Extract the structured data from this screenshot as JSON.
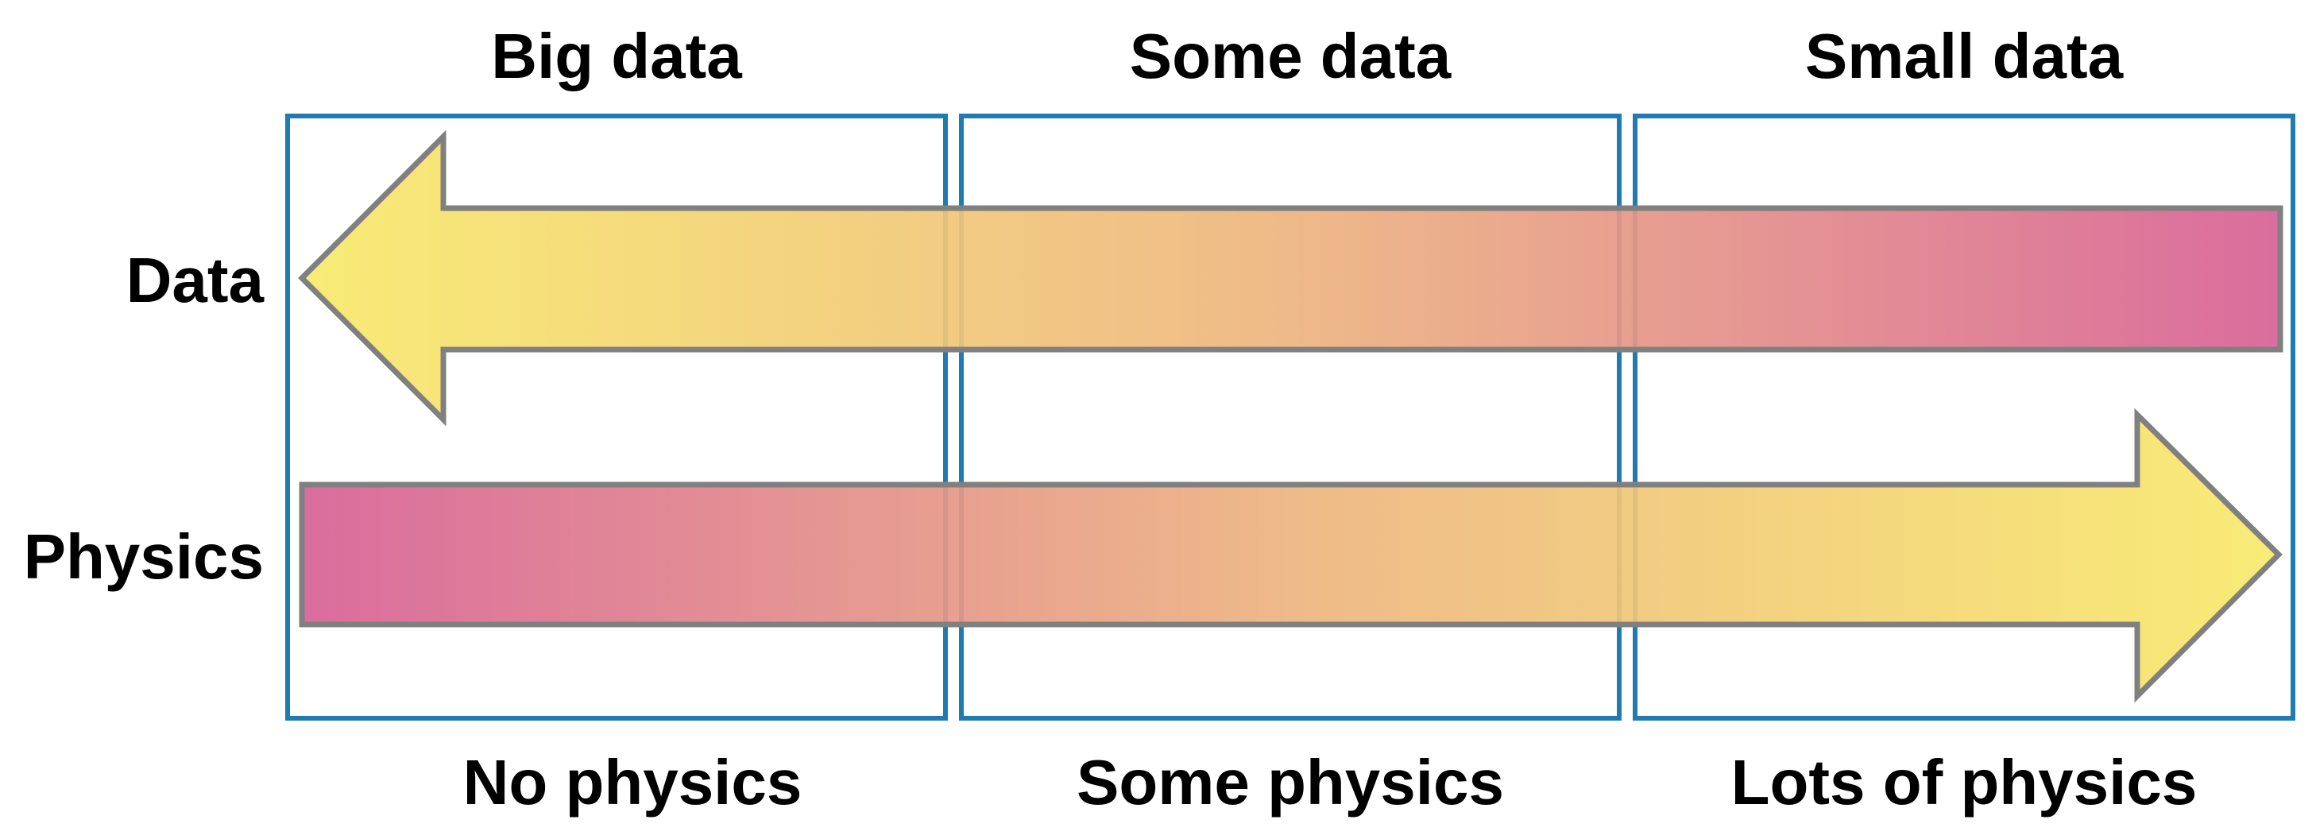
{
  "columns": {
    "top": [
      "Big data",
      "Some data",
      "Small data"
    ],
    "bottom": [
      "No physics",
      "Some physics",
      "Lots of physics"
    ]
  },
  "rows": {
    "data_label": "Data",
    "physics_label": "Physics"
  },
  "colors": {
    "box_stroke": "#1f7bb0",
    "arrow_stroke": "#808080",
    "gradient_yellow": "#f8ea6a",
    "gradient_orange": "#edb47f",
    "gradient_pink": "#d76095"
  }
}
